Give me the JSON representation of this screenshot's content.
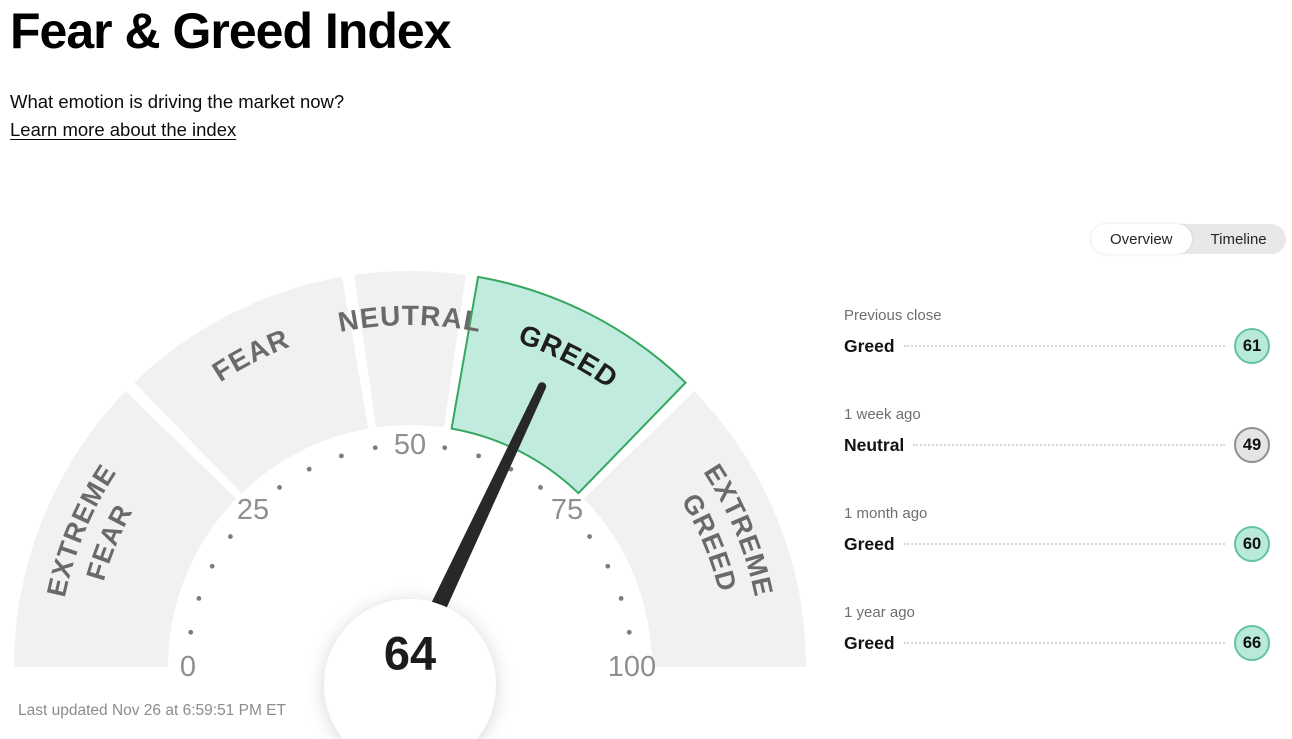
{
  "header": {
    "title": "Fear & Greed Index",
    "subtitle": "What emotion is driving the market now?",
    "learn_more_label": "Learn more about the index"
  },
  "tabs": {
    "overview_label": "Overview",
    "timeline_label": "Timeline",
    "selected": "Overview"
  },
  "chart_data": {
    "type": "gauge",
    "title": "Fear & Greed Index",
    "value": 64,
    "value_category": "Greed",
    "min": 0,
    "max": 100,
    "axis_ticks": [
      0,
      25,
      50,
      75,
      100
    ],
    "minor_tick_step": 5,
    "segments": [
      {
        "label": "EXTREME FEAR",
        "lines": [
          "EXTREME",
          "FEAR"
        ],
        "from": 0,
        "to": 25,
        "highlighted": false
      },
      {
        "label": "FEAR",
        "lines": [
          "FEAR"
        ],
        "from": 25,
        "to": 45,
        "highlighted": false
      },
      {
        "label": "NEUTRAL",
        "lines": [
          "NEUTRAL"
        ],
        "from": 45,
        "to": 55,
        "highlighted": false
      },
      {
        "label": "GREED",
        "lines": [
          "GREED"
        ],
        "from": 55,
        "to": 75,
        "highlighted": true
      },
      {
        "label": "EXTREME GREED",
        "lines": [
          "EXTREME",
          "GREED"
        ],
        "from": 75,
        "to": 100,
        "highlighted": false
      }
    ],
    "colors": {
      "segment_fill": "#f1f1f1",
      "highlight_fill": "#c2ebe0",
      "highlight_stroke": "#35a860",
      "segment_label": "#6a6a6a",
      "highlight_label": "#1e1e1e",
      "tick_dot": "#7d7d7d",
      "tick_number": "#8f8f8f",
      "needle": "#282828",
      "center_value": "#1c1c1c"
    }
  },
  "history": {
    "rows": [
      {
        "label": "Previous close",
        "value_label": "Greed",
        "score": "61",
        "tone": "greed"
      },
      {
        "label": "1 week ago",
        "value_label": "Neutral",
        "score": "49",
        "tone": "neutral"
      },
      {
        "label": "1 month ago",
        "value_label": "Greed",
        "score": "60",
        "tone": "greed"
      },
      {
        "label": "1 year ago",
        "value_label": "Greed",
        "score": "66",
        "tone": "greed"
      }
    ],
    "badge_colors": {
      "greed": {
        "fill": "#b7ead8",
        "stroke": "#64c3a1"
      },
      "neutral": {
        "fill": "#e5e5e5",
        "stroke": "#8f8f8f"
      }
    }
  },
  "footer": {
    "last_updated": "Last updated Nov 26 at 6:59:51 PM ET"
  }
}
